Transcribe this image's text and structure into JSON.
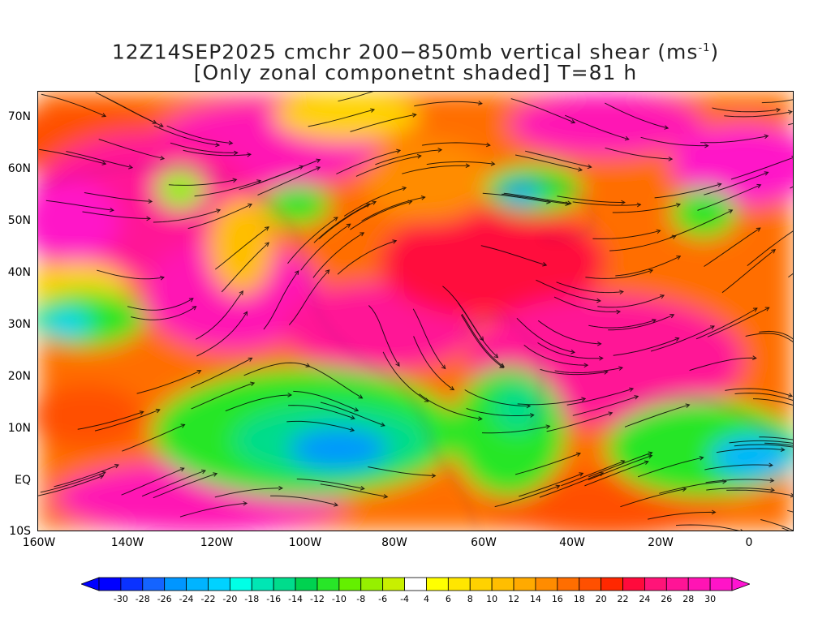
{
  "title": {
    "line1_text": "12Z14SEP2025 cmchr 200−850mb vertical shear (ms",
    "line1_sup": "-1",
    "line1_end": ")",
    "line2": "[Only zonal componetnt shaded] T=81 h"
  },
  "axes": {
    "lat_labels": [
      "70N",
      "60N",
      "50N",
      "40N",
      "30N",
      "20N",
      "10N",
      "EQ",
      "10S"
    ],
    "lon_labels": [
      "160W",
      "140W",
      "120W",
      "100W",
      "80W",
      "60W",
      "40W",
      "20W",
      "0"
    ]
  },
  "colorbar": {
    "labels": [
      "-30",
      "-28",
      "-26",
      "-24",
      "-22",
      "-20",
      "-18",
      "-16",
      "-14",
      "-12",
      "-10",
      "-8",
      "-6",
      "-4",
      "4",
      "6",
      "8",
      "10",
      "12",
      "14",
      "16",
      "18",
      "20",
      "22",
      "24",
      "26",
      "28",
      "30"
    ],
    "colors": [
      "#0000ff",
      "#0a32ff",
      "#1464ff",
      "#0096ff",
      "#00b4ff",
      "#00d2ff",
      "#00ffe6",
      "#00e6b4",
      "#00dc8c",
      "#00d250",
      "#28e628",
      "#64f000",
      "#96f000",
      "#c8f000",
      "#ffffff",
      "#ffff00",
      "#ffe600",
      "#ffd200",
      "#ffbe00",
      "#ffaa00",
      "#ff8c00",
      "#ff6e00",
      "#ff5000",
      "#ff2800",
      "#ff0a3c",
      "#ff1478",
      "#ff1496",
      "#ff14b4",
      "#ff14c8"
    ],
    "left_arrow_color": "#0000ff",
    "right_arrow_color": "#ff14d2"
  },
  "map_extent": {
    "lon_min": -160,
    "lon_max": 10,
    "lat_min": -10,
    "lat_max": 75
  }
}
